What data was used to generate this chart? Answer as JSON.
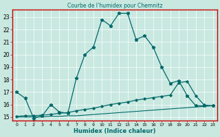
{
  "title": "Courbe de l’humidex pour Chemnitz",
  "xlabel": "Humidex (Indice chaleur)",
  "xlim": [
    -0.5,
    23.5
  ],
  "ylim": [
    14.7,
    23.6
  ],
  "yticks": [
    15,
    16,
    17,
    18,
    19,
    20,
    21,
    22,
    23
  ],
  "xticks": [
    0,
    1,
    2,
    3,
    4,
    5,
    6,
    7,
    8,
    9,
    10,
    11,
    12,
    13,
    14,
    15,
    16,
    17,
    18,
    19,
    20,
    21,
    22,
    23
  ],
  "bg_color": "#c8e8e0",
  "plot_bg": "#c8e8e0",
  "line_color": "#006868",
  "grid_color": "#ffffff",
  "spine_color": "#cc0000",
  "curve1_x": [
    0,
    1,
    2,
    3,
    4,
    5,
    6,
    7,
    8,
    9,
    10,
    11,
    12,
    13,
    14,
    15,
    16,
    17,
    18,
    19,
    20,
    21,
    22,
    23
  ],
  "curve1_y": [
    17.0,
    16.5,
    14.9,
    15.1,
    16.0,
    15.4,
    15.3,
    18.1,
    20.0,
    20.6,
    22.8,
    22.3,
    23.3,
    23.3,
    21.2,
    21.5,
    20.6,
    19.0,
    17.7,
    17.9,
    16.7,
    15.9,
    15.9,
    15.9
  ],
  "curve2_x": [
    0,
    1,
    2,
    3,
    4,
    5,
    6,
    7,
    8,
    9,
    10,
    11,
    12,
    13,
    14,
    15,
    16,
    17,
    18,
    19,
    20,
    21,
    22,
    23
  ],
  "curve2_y": [
    15.05,
    15.1,
    15.1,
    15.15,
    15.2,
    15.3,
    15.35,
    15.5,
    15.6,
    15.7,
    15.85,
    16.0,
    16.1,
    16.2,
    16.35,
    16.45,
    16.55,
    16.65,
    16.75,
    17.75,
    17.85,
    16.7,
    15.95,
    15.9
  ],
  "curve3_x": [
    0,
    1,
    2,
    3,
    4,
    5,
    6,
    7,
    8,
    9,
    10,
    11,
    12,
    13,
    14,
    15,
    16,
    17,
    18,
    19,
    20,
    21,
    22,
    23
  ],
  "curve3_y": [
    15.0,
    15.0,
    15.0,
    15.0,
    15.05,
    15.05,
    15.1,
    15.1,
    15.15,
    15.2,
    15.25,
    15.3,
    15.35,
    15.4,
    15.45,
    15.5,
    15.55,
    15.6,
    15.65,
    15.7,
    15.75,
    15.8,
    15.85,
    15.9
  ]
}
